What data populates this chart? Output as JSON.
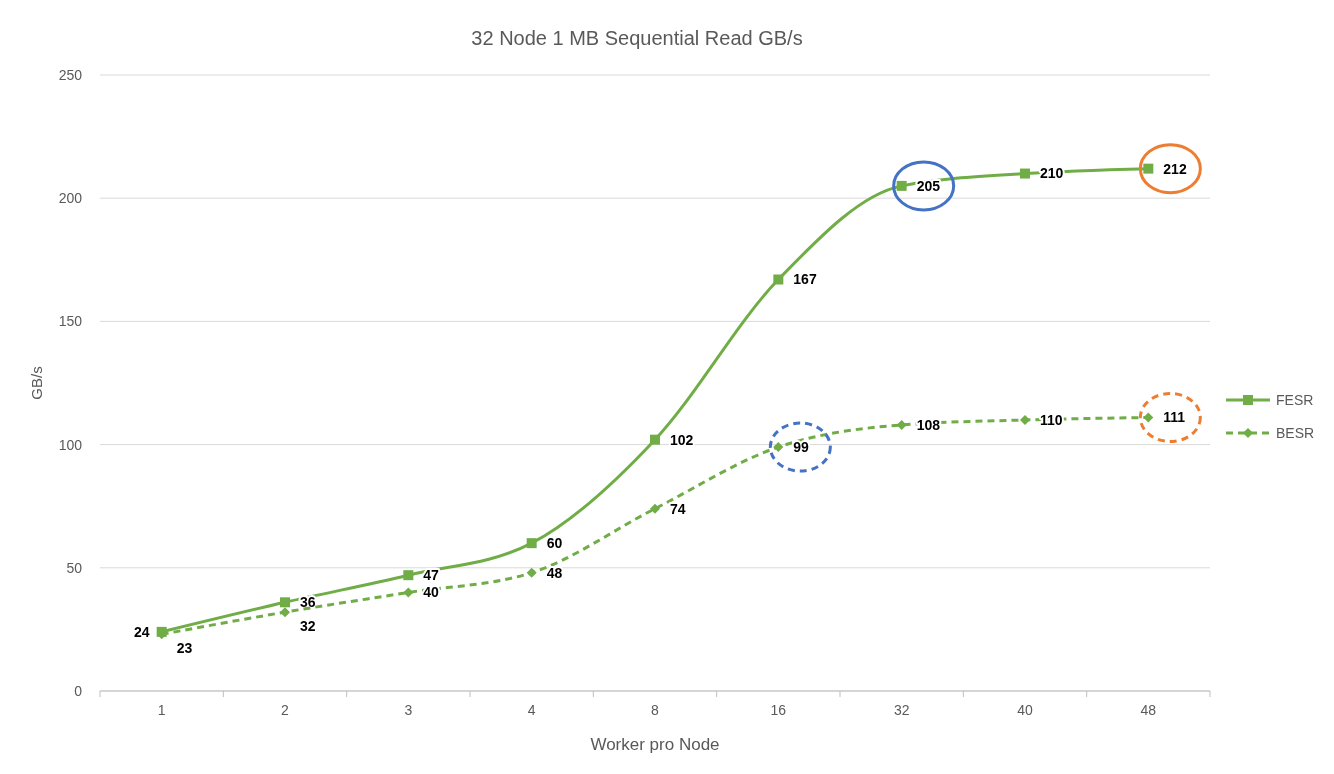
{
  "chart_data": {
    "type": "line",
    "title": "32 Node 1 MB Sequential Read GB/s",
    "xlabel": "Worker pro Node",
    "ylabel": "GB/s",
    "categories": [
      "1",
      "2",
      "3",
      "4",
      "8",
      "16",
      "32",
      "40",
      "48"
    ],
    "series": [
      {
        "name": "FESR",
        "color": "#70ad47",
        "values": [
          24,
          36,
          47,
          60,
          102,
          167,
          205,
          210,
          212
        ],
        "marker": "square",
        "line_style": "solid"
      },
      {
        "name": "BESR",
        "color": "#70ad47",
        "values": [
          23,
          32,
          40,
          48,
          74,
          99,
          108,
          110,
          111
        ],
        "marker": "diamond",
        "line_style": "dashed"
      }
    ],
    "ylim": [
      0,
      250
    ],
    "yticks": [
      0,
      50,
      100,
      150,
      200,
      250
    ],
    "grid": "y",
    "legend": "right",
    "data_labels": true
  }
}
